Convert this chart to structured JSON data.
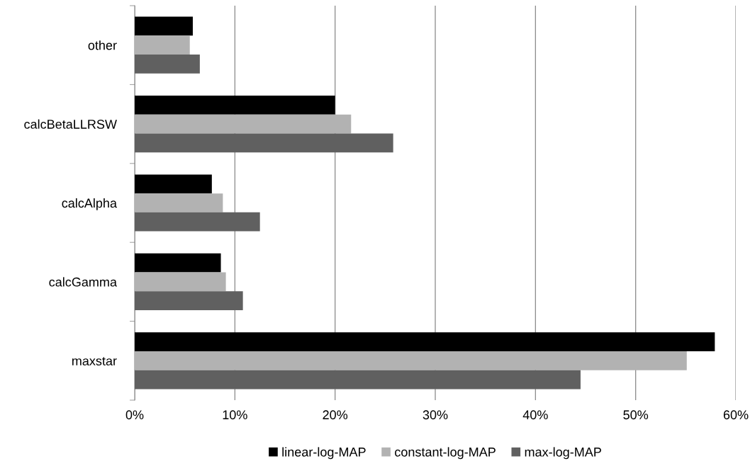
{
  "chart_data": {
    "type": "bar",
    "orientation": "horizontal",
    "categories": [
      "other",
      "calcBetaLLRSW",
      "calcAlpha",
      "calcGamma",
      "maxstar"
    ],
    "series": [
      {
        "name": "linear-log-MAP",
        "color": "#000000",
        "values": [
          5.8,
          20.0,
          7.7,
          8.6,
          57.9
        ]
      },
      {
        "name": "constant-log-MAP",
        "color": "#b2b2b2",
        "values": [
          5.5,
          21.6,
          8.8,
          9.1,
          55.1
        ]
      },
      {
        "name": "max-log-MAP",
        "color": "#606060",
        "values": [
          6.5,
          25.8,
          12.5,
          10.8,
          44.5
        ]
      }
    ],
    "xlim": [
      0,
      60
    ],
    "xticks": [
      {
        "value": 0,
        "label": "0%"
      },
      {
        "value": 10,
        "label": "10%"
      },
      {
        "value": 20,
        "label": "20%"
      },
      {
        "value": 30,
        "label": "30%"
      },
      {
        "value": 40,
        "label": "40%"
      },
      {
        "value": 50,
        "label": "50%"
      },
      {
        "value": 60,
        "label": "60%"
      }
    ],
    "grid": "x",
    "legend": "bottom"
  }
}
